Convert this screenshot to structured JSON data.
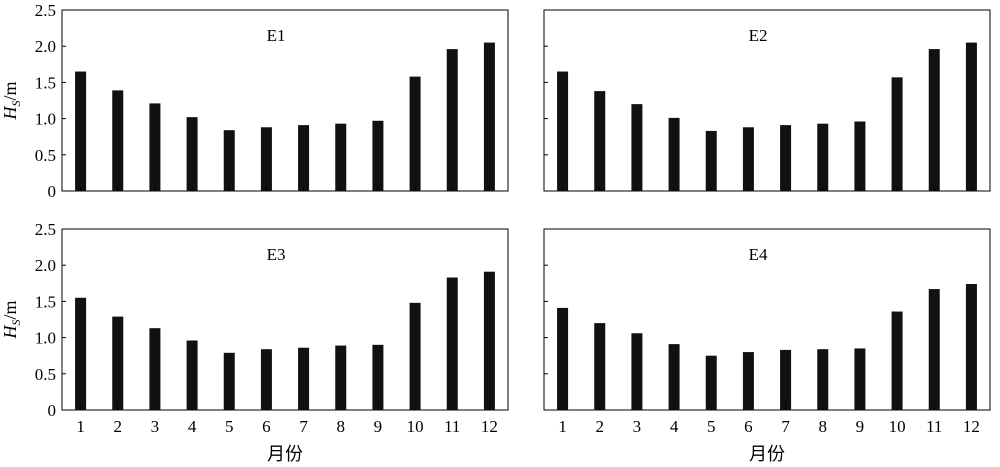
{
  "chart_data": [
    {
      "type": "bar",
      "panel_label": "E1",
      "xlabel": "",
      "ylabel": {
        "main": "H",
        "sub": "S",
        "unit": "/m"
      },
      "categories": [
        "1",
        "2",
        "3",
        "4",
        "5",
        "6",
        "7",
        "8",
        "9",
        "10",
        "11",
        "12"
      ],
      "values": [
        1.65,
        1.39,
        1.21,
        1.02,
        0.84,
        0.88,
        0.91,
        0.93,
        0.97,
        1.58,
        1.96,
        2.05
      ],
      "ylim": [
        0,
        2.5
      ],
      "yticks": [
        "0",
        "0.5",
        "1.0",
        "1.5",
        "2.0",
        "2.5"
      ],
      "show_ytick_labels": true,
      "show_xtick_labels": false
    },
    {
      "type": "bar",
      "panel_label": "E2",
      "xlabel": "",
      "ylabel": null,
      "categories": [
        "1",
        "2",
        "3",
        "4",
        "5",
        "6",
        "7",
        "8",
        "9",
        "10",
        "11",
        "12"
      ],
      "values": [
        1.65,
        1.38,
        1.2,
        1.01,
        0.83,
        0.88,
        0.91,
        0.93,
        0.96,
        1.57,
        1.96,
        2.05
      ],
      "ylim": [
        0,
        2.5
      ],
      "yticks": [
        "0",
        "0.5",
        "1.0",
        "1.5",
        "2.0",
        "2.5"
      ],
      "show_ytick_labels": false,
      "show_xtick_labels": false
    },
    {
      "type": "bar",
      "panel_label": "E3",
      "xlabel": "月份",
      "ylabel": {
        "main": "H",
        "sub": "S",
        "unit": "/m"
      },
      "categories": [
        "1",
        "2",
        "3",
        "4",
        "5",
        "6",
        "7",
        "8",
        "9",
        "10",
        "11",
        "12"
      ],
      "values": [
        1.55,
        1.29,
        1.13,
        0.96,
        0.79,
        0.84,
        0.86,
        0.89,
        0.9,
        1.48,
        1.83,
        1.91
      ],
      "ylim": [
        0,
        2.5
      ],
      "yticks": [
        "0",
        "0.5",
        "1.0",
        "1.5",
        "2.0",
        "2.5"
      ],
      "show_ytick_labels": true,
      "show_xtick_labels": true
    },
    {
      "type": "bar",
      "panel_label": "E4",
      "xlabel": "月份",
      "ylabel": null,
      "categories": [
        "1",
        "2",
        "3",
        "4",
        "5",
        "6",
        "7",
        "8",
        "9",
        "10",
        "11",
        "12"
      ],
      "values": [
        1.41,
        1.2,
        1.06,
        0.91,
        0.75,
        0.8,
        0.83,
        0.84,
        0.85,
        1.36,
        1.67,
        1.74
      ],
      "ylim": [
        0,
        2.5
      ],
      "yticks": [
        "0",
        "0.5",
        "1.0",
        "1.5",
        "2.0",
        "2.5"
      ],
      "show_ytick_labels": false,
      "show_xtick_labels": true
    }
  ]
}
